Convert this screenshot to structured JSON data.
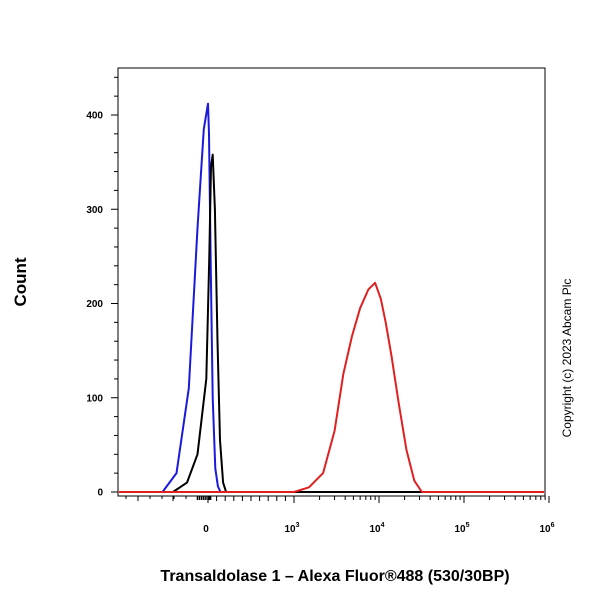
{
  "chart_data": {
    "type": "line",
    "title": "",
    "xlabel": "Transaldolase 1 – Alexa Fluor®488 (530/30BP)",
    "ylabel": "Count",
    "x_scale": "biexponential",
    "ylim": [
      0,
      450
    ],
    "yticks": [
      0,
      100,
      200,
      300,
      400
    ],
    "xticks": [
      {
        "value": 0,
        "base": "0",
        "exp": ""
      },
      {
        "value": 1000,
        "base": "10",
        "exp": "3"
      },
      {
        "value": 10000,
        "base": "10",
        "exp": "4"
      },
      {
        "value": 100000,
        "base": "10",
        "exp": "5"
      },
      {
        "value": 1000000,
        "base": "10",
        "exp": "6"
      }
    ],
    "grid": false,
    "series": [
      {
        "color": "#1a1adc",
        "x": [
          -130,
          -90,
          -55,
          -30,
          -12,
          0,
          12,
          30,
          55,
          85,
          115,
          145
        ],
        "y": [
          0,
          20,
          110,
          280,
          385,
          412,
          380,
          250,
          100,
          25,
          6,
          0
        ]
      },
      {
        "color": "#000000",
        "x": [
          -100,
          -60,
          -30,
          -5,
          15,
          35,
          55,
          80,
          110,
          140,
          175,
          210
        ],
        "y": [
          0,
          10,
          40,
          120,
          250,
          345,
          358,
          300,
          160,
          55,
          10,
          0
        ]
      },
      {
        "color": "#e02020",
        "x": [
          1000,
          1500,
          2200,
          3000,
          3800,
          4800,
          6000,
          7500,
          9000,
          10500,
          12000,
          14000,
          17000,
          21000,
          26000,
          32000
        ],
        "y": [
          0,
          5,
          20,
          65,
          125,
          165,
          195,
          215,
          222,
          205,
          180,
          145,
          95,
          45,
          12,
          0
        ]
      }
    ]
  },
  "copyright": "Copyright (c) 2023 Abcam Plc"
}
